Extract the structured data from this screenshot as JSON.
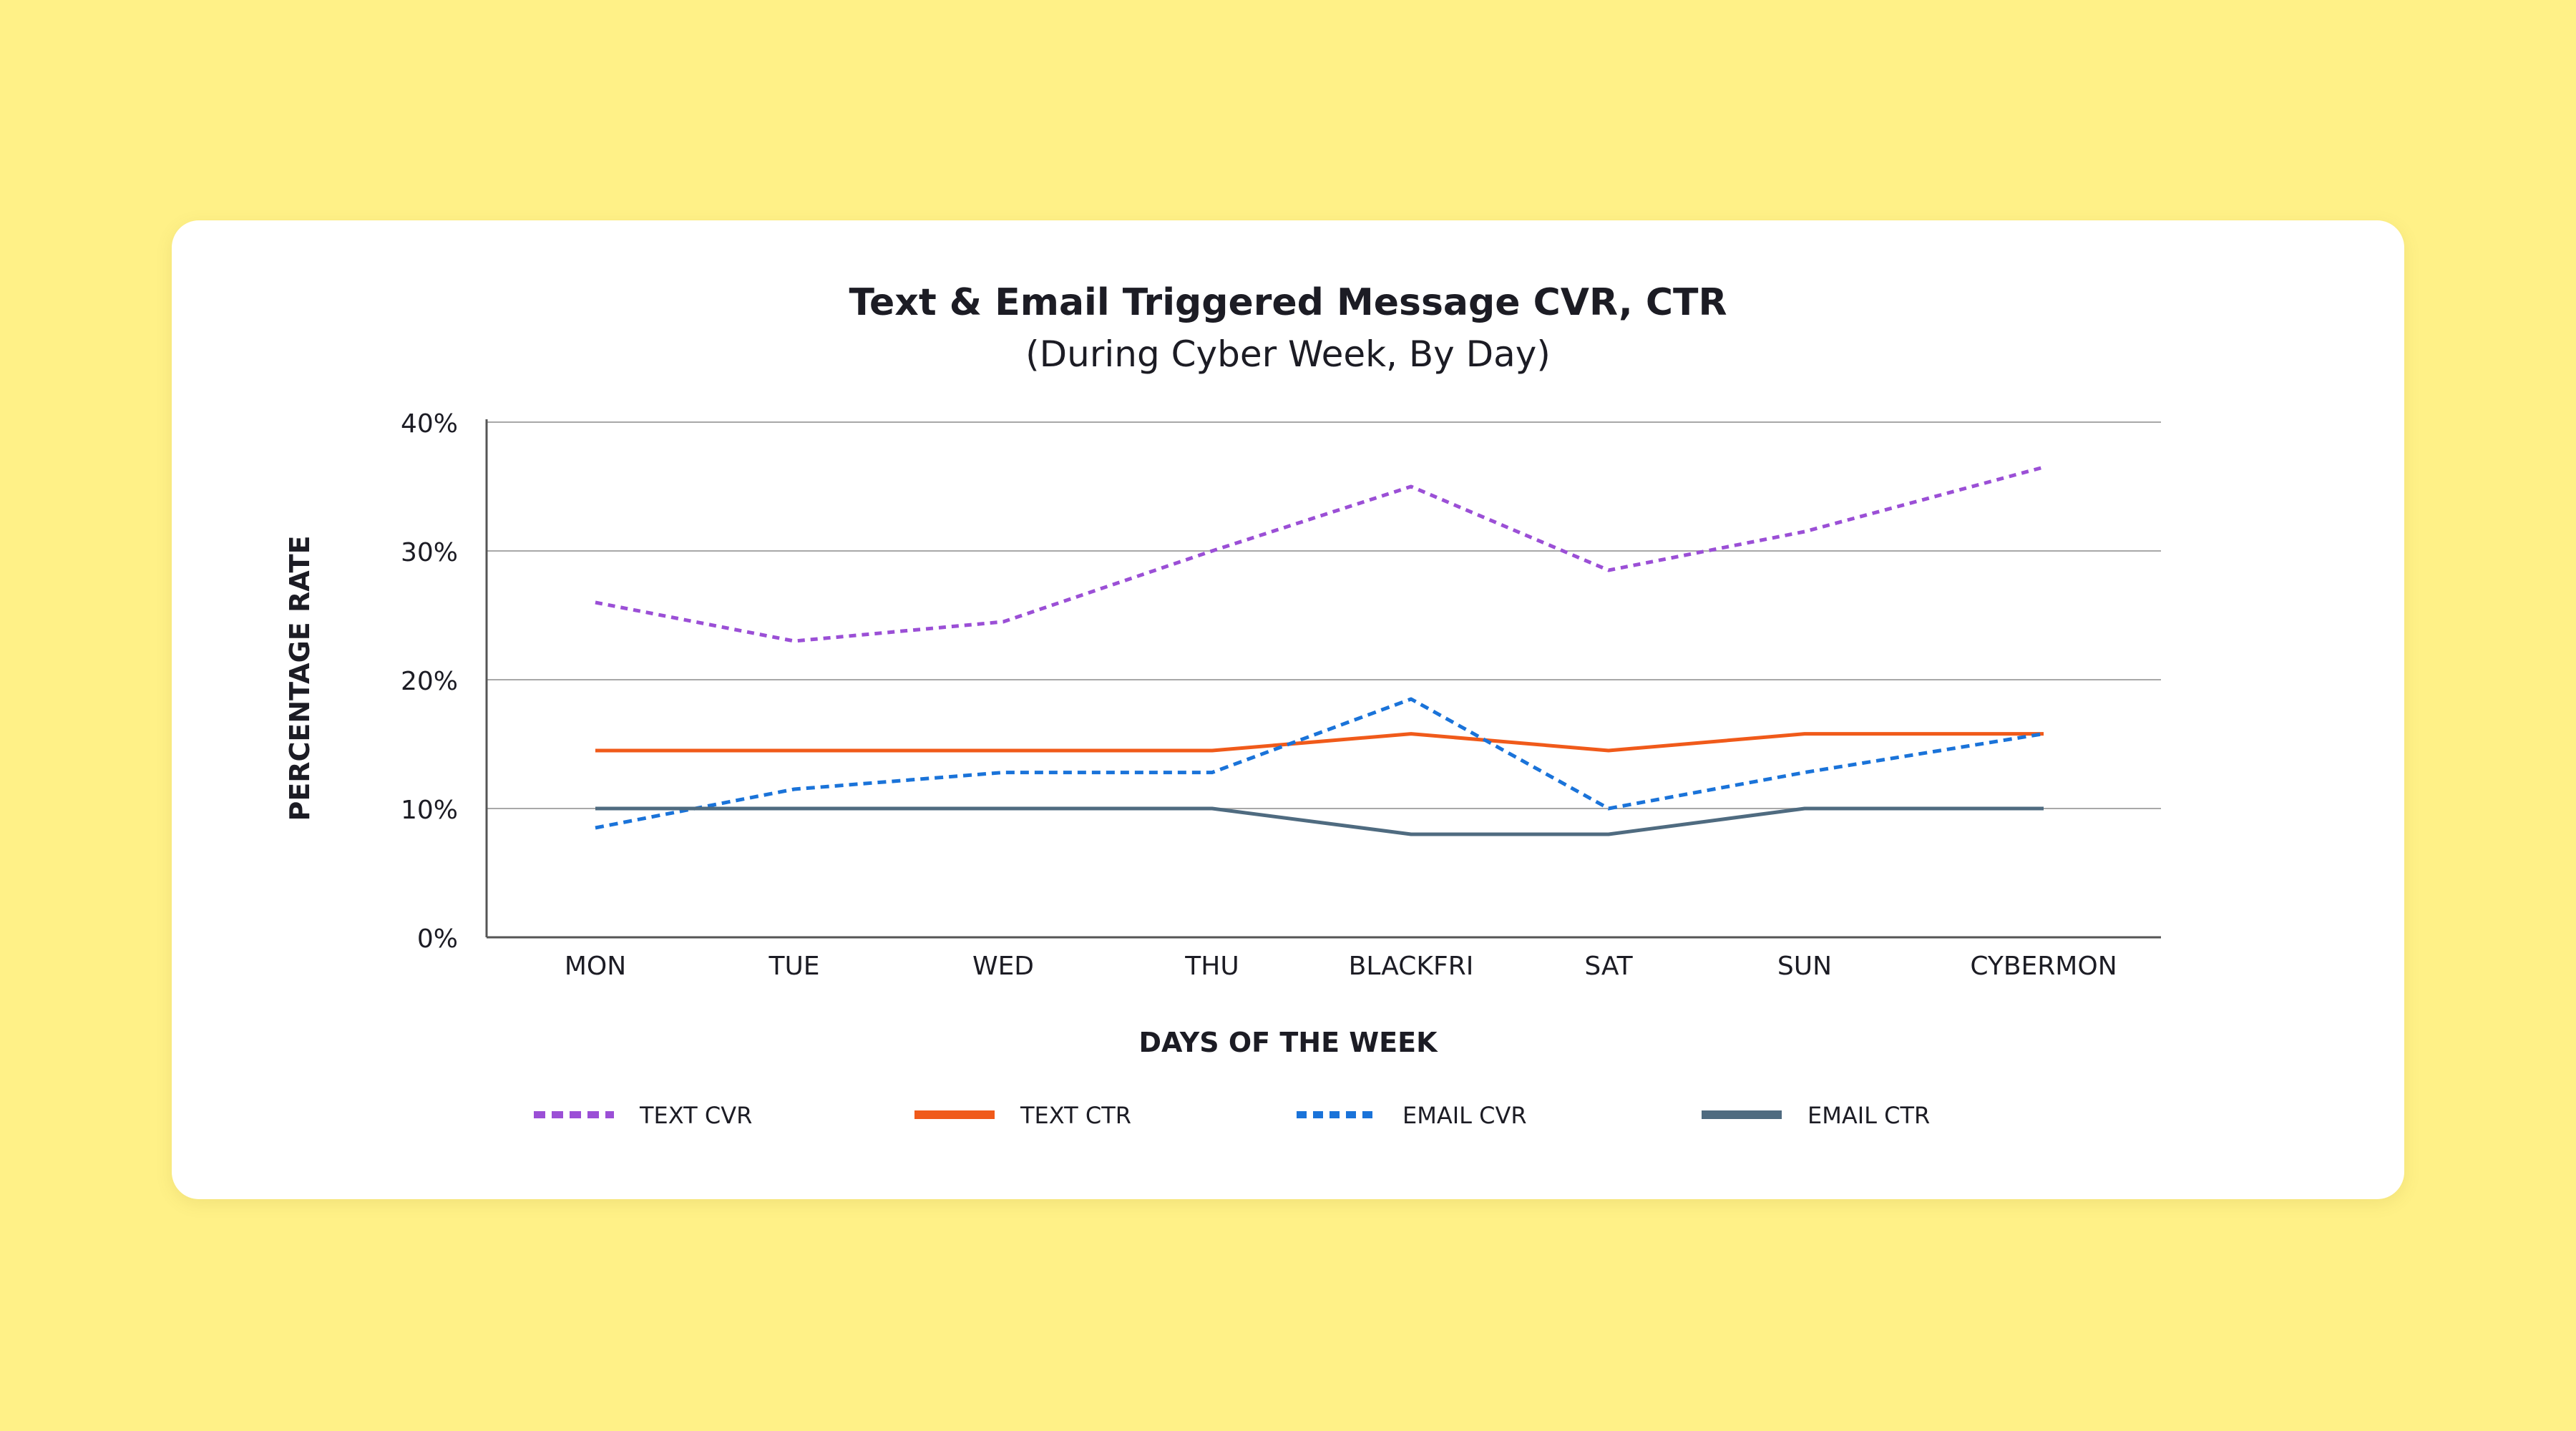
{
  "chart_data": {
    "type": "line",
    "title": "Text & Email Triggered Message CVR, CTR",
    "subtitle": "(During Cyber Week, By Day)",
    "xlabel": "DAYS OF THE WEEK",
    "ylabel": "PERCENTAGE RATE",
    "categories": [
      "MON",
      "TUE",
      "WED",
      "THU",
      "BLACKFRI",
      "SAT",
      "SUN",
      "CYBERMON"
    ],
    "yticks": [
      "0%",
      "10%",
      "20%",
      "30%",
      "40%"
    ],
    "ylim": [
      0,
      40
    ],
    "grid": true,
    "legend_position": "bottom",
    "series": [
      {
        "name": "TEXT CVR",
        "color": "#9B4FD6",
        "style": "dashed",
        "values": [
          26,
          23,
          24.5,
          30,
          35,
          28.5,
          31.5,
          36.5
        ]
      },
      {
        "name": "TEXT CTR",
        "color": "#F05A1A",
        "style": "solid",
        "values": [
          14.5,
          14.5,
          14.5,
          14.5,
          15.8,
          14.5,
          15.8,
          15.8
        ]
      },
      {
        "name": "EMAIL CVR",
        "color": "#1A73D9",
        "style": "dotted",
        "values": [
          8.5,
          11.5,
          12.8,
          12.8,
          18.5,
          10,
          12.8,
          15.8
        ]
      },
      {
        "name": "EMAIL CTR",
        "color": "#4F6B80",
        "style": "solid",
        "values": [
          10,
          10,
          10,
          10,
          8,
          8,
          10,
          10
        ]
      }
    ]
  }
}
